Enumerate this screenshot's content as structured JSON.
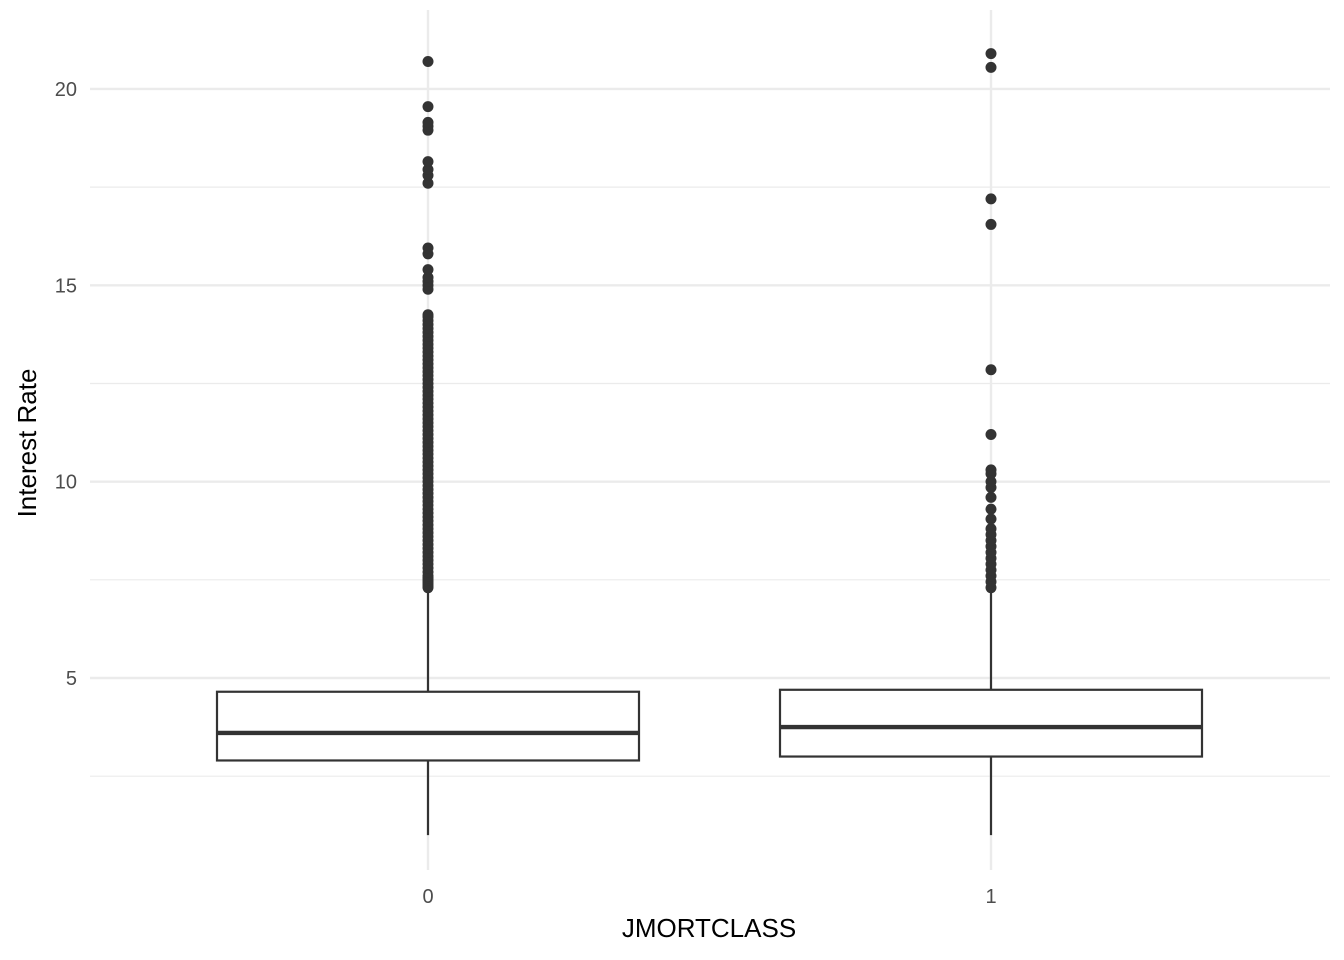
{
  "chart_data": {
    "type": "boxplot",
    "xlabel": "JMORTCLASS",
    "ylabel": "Interest Rate",
    "ylim": [
      0.9,
      21.6
    ],
    "y_ticks": [
      5,
      10,
      15,
      20
    ],
    "y_minor_ticks": [
      2.5,
      7.5,
      12.5,
      17.5
    ],
    "grid": true,
    "categories": [
      "0",
      "1"
    ],
    "boxes": [
      {
        "category": "0",
        "lower_whisker": 1.0,
        "q1": 2.9,
        "median": 3.6,
        "q3": 4.65,
        "upper_whisker": 7.3,
        "outliers": [
          7.3,
          7.35,
          7.4,
          7.45,
          7.5,
          7.55,
          7.6,
          7.7,
          7.8,
          7.9,
          8.0,
          8.1,
          8.2,
          8.3,
          8.4,
          8.5,
          8.6,
          8.7,
          8.8,
          8.9,
          9.0,
          9.1,
          9.2,
          9.3,
          9.4,
          9.5,
          9.6,
          9.7,
          9.8,
          9.9,
          10.0,
          10.1,
          10.2,
          10.3,
          10.4,
          10.5,
          10.6,
          10.7,
          10.8,
          10.9,
          11.0,
          11.1,
          11.2,
          11.3,
          11.4,
          11.5,
          11.6,
          11.7,
          11.8,
          11.9,
          12.0,
          12.1,
          12.2,
          12.3,
          12.4,
          12.5,
          12.6,
          12.7,
          12.8,
          12.9,
          13.0,
          13.1,
          13.2,
          13.3,
          13.4,
          13.5,
          13.6,
          13.7,
          13.8,
          13.9,
          14.0,
          14.1,
          14.2,
          14.25,
          14.9,
          15.0,
          15.1,
          15.2,
          15.4,
          15.8,
          15.95,
          17.6,
          17.8,
          17.95,
          18.15,
          18.95,
          19.05,
          19.15,
          19.55,
          20.7
        ]
      },
      {
        "category": "1",
        "lower_whisker": 1.0,
        "q1": 3.0,
        "median": 3.75,
        "q3": 4.7,
        "upper_whisker": 7.3,
        "outliers": [
          7.3,
          7.45,
          7.6,
          7.75,
          7.9,
          8.05,
          8.2,
          8.35,
          8.5,
          8.65,
          8.8,
          9.05,
          9.3,
          9.6,
          9.85,
          10.0,
          10.2,
          10.3,
          11.2,
          12.85,
          16.55,
          17.2,
          20.55,
          20.9
        ]
      }
    ]
  }
}
